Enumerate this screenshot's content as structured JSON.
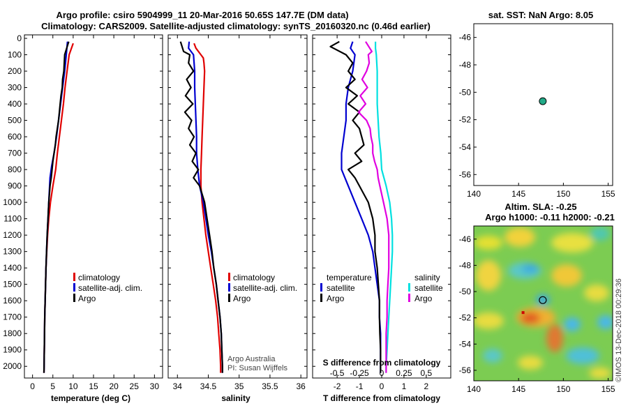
{
  "header": {
    "title1": "Argo profile: csiro 5904999_11 20-Mar-2016 50.65S 147.7E (DM data)",
    "title2": "Climatology: CARS2009. Satellite-adjusted climatology: synTS_20160320.nc (0.46d earlier)"
  },
  "colors": {
    "clim": "#e00000",
    "sat": "#0000d0",
    "argo": "#000000",
    "sat_s": "#00e0e0",
    "argo_s": "#e000e0"
  },
  "depth_ticks": [
    "0",
    "100",
    "200",
    "300",
    "400",
    "500",
    "600",
    "700",
    "800",
    "900",
    "1000",
    "1100",
    "1200",
    "1300",
    "1400",
    "1500",
    "1600",
    "1700",
    "1800",
    "1900",
    "2000"
  ],
  "chart_data": [
    {
      "type": "line",
      "name": "temperature",
      "xlabel": "temperature (deg C)",
      "xticks": [
        "0",
        "5",
        "10",
        "15",
        "20",
        "25",
        "30"
      ],
      "xlim": [
        -2,
        32
      ],
      "ylim": [
        2050,
        0
      ],
      "series": [
        {
          "name": "climatology",
          "color": "#e00000",
          "depth": [
            30,
            100,
            200,
            300,
            400,
            500,
            600,
            700,
            800,
            900,
            1000,
            1100,
            1200,
            1300,
            1400,
            1500,
            1600,
            1700,
            1800,
            1900,
            2000,
            2040
          ],
          "values": [
            10.0,
            9.0,
            8.5,
            8.0,
            7.6,
            7.1,
            6.6,
            6.1,
            5.7,
            5.0,
            4.4,
            4.0,
            3.7,
            3.5,
            3.3,
            3.2,
            3.1,
            3.0,
            2.95,
            2.9,
            2.85,
            2.8
          ]
        },
        {
          "name": "satellite-adj. clim.",
          "color": "#0000d0",
          "depth": [
            20,
            100,
            200,
            300,
            400,
            500,
            600,
            700,
            780,
            850,
            1000,
            1100,
            1200,
            1300,
            1400,
            1500,
            1600,
            1700,
            1800,
            1900,
            2000,
            2040
          ],
          "values": [
            8.6,
            8.3,
            7.9,
            7.4,
            6.9,
            6.4,
            5.9,
            5.3,
            4.7,
            4.3,
            4.0,
            3.8,
            3.6,
            3.45,
            3.3,
            3.2,
            3.1,
            3.0,
            2.95,
            2.9,
            2.85,
            2.8
          ]
        },
        {
          "name": "Argo",
          "color": "#000000",
          "depth": [
            20,
            60,
            100,
            150,
            200,
            250,
            300,
            350,
            400,
            450,
            500,
            550,
            600,
            650,
            700,
            750,
            800,
            850,
            900,
            1000,
            1100,
            1200,
            1300,
            1400,
            1500,
            1600,
            1700,
            1800,
            1900,
            2000,
            2040
          ],
          "values": [
            8.9,
            8.4,
            7.9,
            7.8,
            7.7,
            7.4,
            7.3,
            7.0,
            6.8,
            6.6,
            6.4,
            6.1,
            5.8,
            5.6,
            5.3,
            5.0,
            4.8,
            4.6,
            4.3,
            4.0,
            3.8,
            3.6,
            3.45,
            3.3,
            3.2,
            3.1,
            3.0,
            2.95,
            2.9,
            2.85,
            2.8
          ]
        }
      ],
      "legend": [
        "climatology",
        "satellite-adj. clim.",
        "Argo"
      ]
    },
    {
      "type": "line",
      "name": "salinity",
      "xlabel": "salinity",
      "xticks": [
        "34",
        "34.5",
        "35",
        "35.5",
        "36"
      ],
      "xlim": [
        33.85,
        36.1
      ],
      "ylim": [
        2050,
        0
      ],
      "series": [
        {
          "name": "climatology",
          "color": "#e00000",
          "depth": [
            30,
            60,
            100,
            120,
            150,
            200,
            300,
            400,
            500,
            600,
            700,
            800,
            900,
            1000,
            1100,
            1200,
            1300,
            1400,
            1500,
            1600,
            1700,
            1800,
            1900,
            2000,
            2040
          ],
          "values": [
            34.27,
            34.3,
            34.38,
            34.42,
            34.43,
            34.44,
            34.43,
            34.42,
            34.41,
            34.4,
            34.39,
            34.38,
            34.38,
            34.4,
            34.43,
            34.46,
            34.5,
            34.54,
            34.58,
            34.62,
            34.65,
            34.67,
            34.69,
            34.7,
            34.7
          ]
        },
        {
          "name": "satellite-adj. clim.",
          "color": "#0000d0",
          "depth": [
            20,
            60,
            100,
            200,
            300,
            400,
            500,
            600,
            700,
            800,
            900,
            1000,
            1100,
            1200,
            1300,
            1400,
            1500,
            1600,
            1700,
            1800,
            1900,
            2000,
            2040
          ],
          "values": [
            34.19,
            34.18,
            34.26,
            34.28,
            34.28,
            34.29,
            34.3,
            34.31,
            34.31,
            34.33,
            34.36,
            34.42,
            34.46,
            34.5,
            34.55,
            34.59,
            34.63,
            34.66,
            34.69,
            34.71,
            34.72,
            34.73,
            34.73
          ]
        },
        {
          "name": "Argo",
          "color": "#000000",
          "depth": [
            20,
            80,
            100,
            150,
            200,
            250,
            300,
            350,
            400,
            450,
            500,
            550,
            600,
            650,
            700,
            750,
            800,
            850,
            900,
            1000,
            1100,
            1200,
            1300,
            1400,
            1500,
            1600,
            1700,
            1800,
            1900,
            2000,
            2040
          ],
          "values": [
            34.05,
            34.1,
            34.2,
            34.18,
            34.26,
            34.15,
            34.22,
            34.13,
            34.25,
            34.12,
            34.23,
            34.18,
            34.27,
            34.2,
            34.3,
            34.24,
            34.34,
            34.26,
            34.36,
            34.44,
            34.48,
            34.52,
            34.56,
            34.59,
            34.63,
            34.66,
            34.69,
            34.71,
            34.72,
            34.73,
            34.73
          ]
        }
      ],
      "legend": [
        "climatology",
        "satellite-adj. clim.",
        "Argo"
      ],
      "annotation": [
        "Argo Australia",
        "PI: Susan Wijffels"
      ]
    },
    {
      "type": "line",
      "name": "difference",
      "xlabel": "T difference from climatology",
      "xlabel_top": "S difference from climatology",
      "xticks": [
        "-2",
        "-1",
        "0",
        "1",
        "2"
      ],
      "xticks_top": [
        "-0.5",
        "-0.25",
        "0",
        "0.25",
        "0.5"
      ],
      "xlim": [
        -3.1,
        3.1
      ],
      "ylim": [
        2050,
        0
      ],
      "series": [
        {
          "name": "temperature satellite",
          "color": "#0000d0",
          "depth": [
            20,
            60,
            100,
            200,
            300,
            400,
            500,
            600,
            700,
            800,
            900,
            1000,
            1100,
            1200,
            1300,
            1400,
            1500,
            1600,
            1700,
            1800,
            1900,
            2000,
            2040
          ],
          "values": [
            -1.3,
            -1.4,
            -1.2,
            -1.3,
            -1.5,
            -1.6,
            -1.6,
            -1.7,
            -1.8,
            -1.8,
            -1.5,
            -1.2,
            -0.9,
            -0.6,
            -0.4,
            -0.3,
            -0.2,
            -0.1,
            -0.1,
            -0.05,
            -0.05,
            -0.05,
            -0.05
          ]
        },
        {
          "name": "temperature Argo",
          "color": "#000000",
          "depth": [
            20,
            50,
            100,
            150,
            200,
            250,
            300,
            350,
            400,
            450,
            500,
            550,
            600,
            650,
            700,
            750,
            800,
            850,
            900,
            1000,
            1100,
            1200,
            1300,
            1400,
            1500,
            1600,
            1700,
            1800,
            1900,
            2000,
            2040
          ],
          "values": [
            -1.9,
            -2.3,
            -1.6,
            -1.3,
            -1.5,
            -1.2,
            -1.6,
            -1.1,
            -1.5,
            -1.0,
            -1.3,
            -1.0,
            -0.9,
            -0.8,
            -1.2,
            -0.9,
            -1.5,
            -1.2,
            -1.0,
            -0.6,
            -0.4,
            -0.3,
            -0.3,
            -0.2,
            -0.15,
            -0.1,
            -0.1,
            -0.08,
            -0.05,
            -0.05,
            -0.05
          ]
        },
        {
          "name": "salinity satellite",
          "color": "#00e0e0",
          "depth": [
            20,
            60,
            100,
            200,
            300,
            400,
            500,
            600,
            700,
            800,
            900,
            1000,
            1100,
            1200,
            1300,
            1400,
            1500,
            1600,
            1700,
            1800,
            1900,
            2000,
            2040
          ],
          "values": [
            -0.07,
            -0.07,
            -0.06,
            -0.05,
            -0.05,
            -0.05,
            -0.04,
            -0.03,
            -0.01,
            0.0,
            0.05,
            0.09,
            0.11,
            0.12,
            0.12,
            0.11,
            0.1,
            0.09,
            0.08,
            0.07,
            0.06,
            0.05,
            0.05
          ]
        },
        {
          "name": "salinity Argo",
          "color": "#e000e0",
          "depth": [
            20,
            80,
            100,
            150,
            200,
            250,
            300,
            350,
            400,
            450,
            500,
            550,
            600,
            650,
            700,
            750,
            800,
            850,
            900,
            1000,
            1100,
            1200,
            1300,
            1400,
            1500,
            1600,
            1700,
            1800,
            1900,
            2000,
            2040
          ],
          "values": [
            -0.18,
            -0.11,
            -0.15,
            -0.14,
            -0.17,
            -0.22,
            -0.16,
            -0.24,
            -0.18,
            -0.26,
            -0.17,
            -0.13,
            -0.12,
            -0.1,
            -0.1,
            -0.08,
            -0.05,
            -0.04,
            -0.02,
            0.02,
            0.06,
            0.08,
            0.08,
            0.08,
            0.07,
            0.06,
            0.06,
            0.05,
            0.05,
            0.05,
            0.05
          ]
        }
      ],
      "legend_left": {
        "title": "temperature",
        "items": [
          "satellite",
          "Argo"
        ]
      },
      "legend_right": {
        "title": "salinity",
        "items": [
          "satellite",
          "Argo"
        ]
      }
    },
    {
      "type": "scatter",
      "name": "sst-map",
      "title": "sat. SST: NaN Argo: 8.05",
      "xticks": [
        "140",
        "145",
        "150",
        "155"
      ],
      "yticks": [
        "-46",
        "-48",
        "-50",
        "-52",
        "-54",
        "-56"
      ],
      "xlim": [
        140,
        155.5
      ],
      "ylim": [
        -56.8,
        -45
      ],
      "point": {
        "lon": 147.7,
        "lat": -50.65
      }
    },
    {
      "type": "heatmap",
      "name": "sla-map",
      "title1": "Altim. SLA: -0.25",
      "title2": "Argo h1000: -0.11 h2000: -0.21",
      "xticks": [
        "140",
        "145",
        "150",
        "155"
      ],
      "yticks": [
        "-46",
        "-48",
        "-50",
        "-52",
        "-54",
        "-56"
      ],
      "xlim": [
        140,
        155.5
      ],
      "ylim": [
        -56.8,
        -45
      ],
      "point": {
        "lon": 147.7,
        "lat": -50.65
      },
      "marker": {
        "lon": 145.5,
        "lat": -51.6
      },
      "timestamp": "©IMOS 13-Dec-2018 00:29:36"
    }
  ]
}
